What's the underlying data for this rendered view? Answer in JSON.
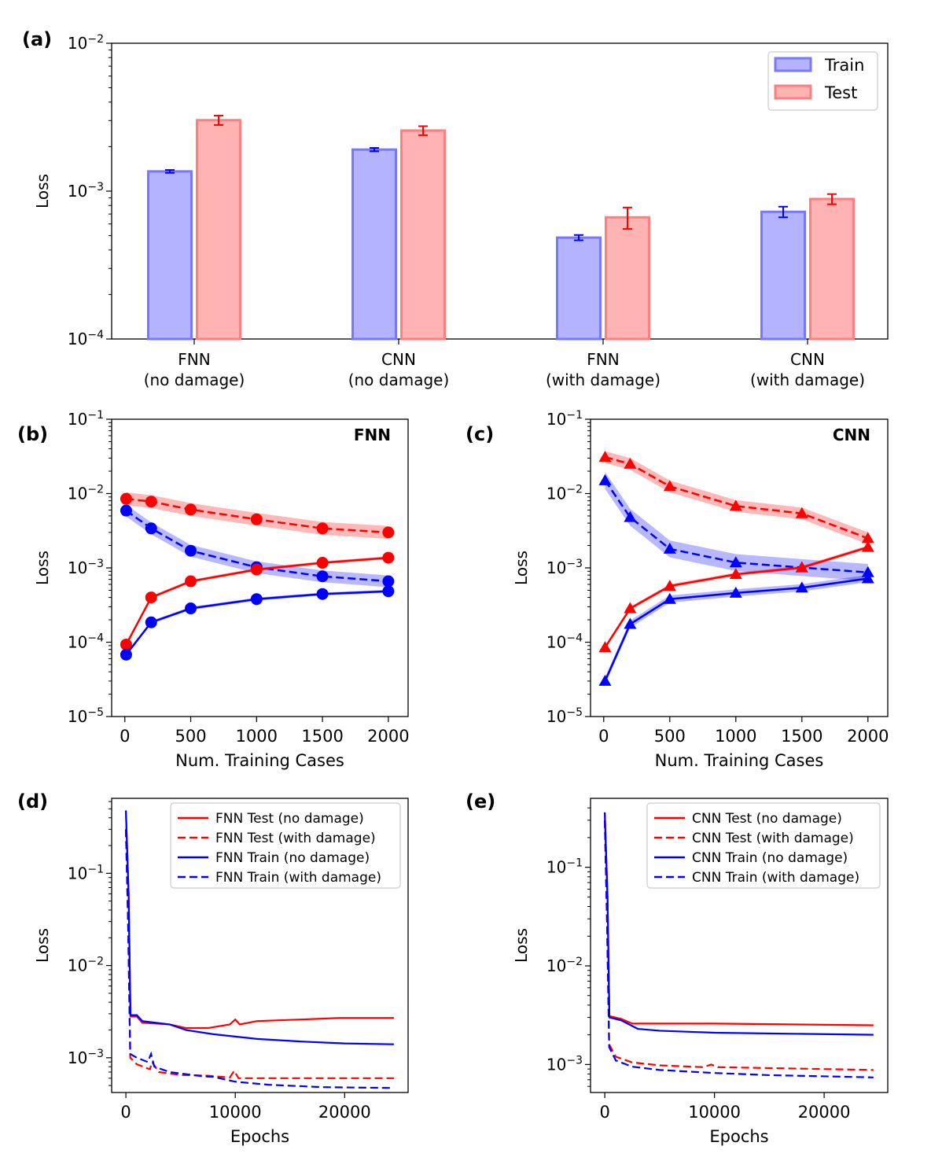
{
  "colors": {
    "train": "#0000ff",
    "test": "#ff0000",
    "train_fill": "#b3b3ff",
    "test_fill": "#ffb3b3",
    "train_edge": "#7777ff",
    "test_edge": "#ff7f7f"
  },
  "chart_data": [
    {
      "panel": "(a)",
      "type": "bar",
      "ylabel": "Loss",
      "yscale": "log",
      "ylim": [
        0.0001,
        0.01
      ],
      "categories": [
        "FNN\n(no damage)",
        "CNN\n(no damage)",
        "FNN\n(with damage)",
        "CNN\n(with damage)"
      ],
      "series": [
        {
          "name": "Train",
          "values": [
            0.00136,
            0.00191,
            0.000485,
            0.000725
          ],
          "err": [
            3e-05,
            5e-05,
            2e-05,
            6e-05
          ]
        },
        {
          "name": "Test",
          "values": [
            0.00302,
            0.00257,
            0.000665,
            0.000885
          ],
          "err": [
            0.00022,
            0.00018,
            0.00011,
            7e-05
          ]
        }
      ],
      "legend": {
        "position": "top-right",
        "entries": [
          "Train",
          "Test"
        ]
      },
      "yticks": [
        {
          "v": 0.0001,
          "b": "10",
          "e": "−4"
        },
        {
          "v": 0.001,
          "b": "10",
          "e": "−3"
        },
        {
          "v": 0.01,
          "b": "10",
          "e": "−2"
        }
      ]
    },
    {
      "panel": "(b)",
      "title": "FNN",
      "type": "line",
      "xlabel": "Num. Training Cases",
      "ylabel": "Loss",
      "yscale": "log",
      "xlim": [
        -100,
        2150
      ],
      "ylim": [
        1e-05,
        0.1
      ],
      "xticks": [
        "0",
        "500",
        "1000",
        "1500",
        "2000"
      ],
      "yticks": [
        {
          "v": 1e-05,
          "b": "10",
          "e": "−5"
        },
        {
          "v": 0.0001,
          "b": "10",
          "e": "−4"
        },
        {
          "v": 0.001,
          "b": "10",
          "e": "−3"
        },
        {
          "v": 0.01,
          "b": "10",
          "e": "−2"
        },
        {
          "v": 0.1,
          "b": "10",
          "e": "−1"
        }
      ],
      "x": [
        10,
        200,
        500,
        1000,
        1500,
        2000
      ],
      "series": [
        {
          "name": "Test (with damage)",
          "color": "red",
          "dash": true,
          "values": [
            0.0085,
            0.0078,
            0.0061,
            0.0045,
            0.0034,
            0.003
          ],
          "band": 0.22
        },
        {
          "name": "Train (with damage)",
          "color": "blue",
          "dash": true,
          "values": [
            0.0059,
            0.0034,
            0.0017,
            0.00102,
            0.00077,
            0.00066
          ],
          "band": 0.2
        },
        {
          "name": "Test (no damage)",
          "color": "red",
          "dash": false,
          "values": [
            9.3e-05,
            0.0004,
            0.00066,
            0.00095,
            0.00117,
            0.00137
          ],
          "band": 0.05
        },
        {
          "name": "Train (no damage)",
          "color": "blue",
          "dash": false,
          "values": [
            6.8e-05,
            0.000185,
            0.000285,
            0.00038,
            0.000445,
            0.000485
          ],
          "band": 0.05
        }
      ]
    },
    {
      "panel": "(c)",
      "title": "CNN",
      "type": "line",
      "xlabel": "Num. Training Cases",
      "ylabel": "Loss",
      "yscale": "log",
      "xlim": [
        -100,
        2150
      ],
      "ylim": [
        1e-05,
        0.1
      ],
      "xticks": [
        "0",
        "500",
        "1000",
        "1500",
        "2000"
      ],
      "yticks": [
        {
          "v": 1e-05,
          "b": "10",
          "e": "−5"
        },
        {
          "v": 0.0001,
          "b": "10",
          "e": "−4"
        },
        {
          "v": 0.001,
          "b": "10",
          "e": "−3"
        },
        {
          "v": 0.01,
          "b": "10",
          "e": "−2"
        },
        {
          "v": 0.1,
          "b": "10",
          "e": "−1"
        }
      ],
      "x": [
        10,
        200,
        500,
        1000,
        1500,
        2000
      ],
      "series": [
        {
          "name": "Test (with damage)",
          "color": "red",
          "dash": true,
          "values": [
            0.031,
            0.025,
            0.0125,
            0.0068,
            0.0054,
            0.0025
          ],
          "band": 0.2
        },
        {
          "name": "Train (with damage)",
          "color": "blue",
          "dash": true,
          "values": [
            0.015,
            0.0048,
            0.0018,
            0.00118,
            0.00101,
            0.00087
          ],
          "band": 0.3
        },
        {
          "name": "Test (no damage)",
          "color": "red",
          "dash": false,
          "values": [
            8.5e-05,
            0.000285,
            0.00057,
            0.00082,
            0.00101,
            0.0019
          ],
          "band": 0.06
        },
        {
          "name": "Train (no damage)",
          "color": "blue",
          "dash": false,
          "values": [
            3e-05,
            0.000175,
            0.00038,
            0.00046,
            0.00054,
            0.00072
          ],
          "band": 0.12
        }
      ]
    },
    {
      "panel": "(d)",
      "type": "line",
      "xlabel": "Epochs",
      "ylabel": "Loss",
      "yscale": "log",
      "xlim": [
        -1300,
        25800
      ],
      "ylim": [
        0.00042,
        0.65
      ],
      "xticks": [
        "0",
        "10000",
        "20000"
      ],
      "yticks": [
        {
          "v": 0.001,
          "b": "10",
          "e": "−3"
        },
        {
          "v": 0.01,
          "b": "10",
          "e": "−2"
        },
        {
          "v": 0.1,
          "b": "10",
          "e": "−1"
        }
      ],
      "legend": {
        "position": "top-right",
        "entries": [
          "FNN Test (no damage)",
          "FNN Test (with damage)",
          "FNN Train (no damage)",
          "FNN Train (with damage)"
        ]
      },
      "series": [
        {
          "name": "FNN Test (no damage)",
          "color": "red",
          "dash": false,
          "points": [
            [
              0,
              0.48
            ],
            [
              250,
              0.06
            ],
            [
              420,
              0.0028
            ],
            [
              1000,
              0.0028
            ],
            [
              1500,
              0.0024
            ],
            [
              4000,
              0.0023
            ],
            [
              5500,
              0.0021
            ],
            [
              7500,
              0.0021
            ],
            [
              9500,
              0.0023
            ],
            [
              10000,
              0.0026
            ],
            [
              10400,
              0.0023
            ],
            [
              12000,
              0.0025
            ],
            [
              16000,
              0.0026
            ],
            [
              19500,
              0.0027
            ],
            [
              20000,
              0.0027
            ],
            [
              24500,
              0.0027
            ]
          ]
        },
        {
          "name": "FNN Test (with damage)",
          "color": "red",
          "dash": true,
          "points": [
            [
              0,
              0.3
            ],
            [
              200,
              0.03
            ],
            [
              400,
              0.001
            ],
            [
              1000,
              0.00085
            ],
            [
              1600,
              0.0008
            ],
            [
              2200,
              0.00075
            ],
            [
              2400,
              0.0009
            ],
            [
              3000,
              0.0007
            ],
            [
              5000,
              0.00065
            ],
            [
              7500,
              0.00064
            ],
            [
              9500,
              0.00061
            ],
            [
              9900,
              0.00072
            ],
            [
              10300,
              0.0006
            ],
            [
              13000,
              0.0006
            ],
            [
              20000,
              0.0006
            ],
            [
              24500,
              0.0006
            ]
          ]
        },
        {
          "name": "FNN Train (no damage)",
          "color": "blue",
          "dash": false,
          "points": [
            [
              0,
              0.48
            ],
            [
              250,
              0.06
            ],
            [
              420,
              0.0029
            ],
            [
              1000,
              0.0029
            ],
            [
              1500,
              0.0025
            ],
            [
              4000,
              0.0023
            ],
            [
              5500,
              0.002
            ],
            [
              8000,
              0.0018
            ],
            [
              12000,
              0.0016
            ],
            [
              16000,
              0.0015
            ],
            [
              20000,
              0.00143
            ],
            [
              24500,
              0.0014
            ]
          ]
        },
        {
          "name": "FNN Train (with damage)",
          "color": "blue",
          "dash": true,
          "points": [
            [
              0,
              0.3
            ],
            [
              200,
              0.03
            ],
            [
              400,
              0.0011
            ],
            [
              1000,
              0.001
            ],
            [
              2000,
              0.0009
            ],
            [
              2300,
              0.0011
            ],
            [
              2600,
              0.0008
            ],
            [
              4000,
              0.0007
            ],
            [
              7000,
              0.00063
            ],
            [
              8000,
              0.00062
            ],
            [
              10000,
              0.00055
            ],
            [
              13000,
              0.00051
            ],
            [
              18000,
              0.00048
            ],
            [
              24500,
              0.00047
            ]
          ]
        }
      ]
    },
    {
      "panel": "(e)",
      "type": "line",
      "xlabel": "Epochs",
      "ylabel": "Loss",
      "yscale": "log",
      "xlim": [
        -1300,
        25800
      ],
      "ylim": [
        0.00052,
        0.5
      ],
      "xticks": [
        "0",
        "10000",
        "20000"
      ],
      "yticks": [
        {
          "v": 0.001,
          "b": "10",
          "e": "−3"
        },
        {
          "v": 0.01,
          "b": "10",
          "e": "−2"
        },
        {
          "v": 0.1,
          "b": "10",
          "e": "−1"
        }
      ],
      "legend": {
        "position": "top-right",
        "entries": [
          "CNN Test (no damage)",
          "CNN Test (with damage)",
          "CNN Train (no damage)",
          "CNN Train (with damage)"
        ]
      },
      "series": [
        {
          "name": "CNN Test (no damage)",
          "color": "red",
          "dash": false,
          "points": [
            [
              0,
              0.36
            ],
            [
              250,
              0.05
            ],
            [
              420,
              0.0031
            ],
            [
              1500,
              0.0029
            ],
            [
              2500,
              0.0026
            ],
            [
              5000,
              0.0026
            ],
            [
              10000,
              0.0026
            ],
            [
              24500,
              0.0025
            ]
          ]
        },
        {
          "name": "CNN Test (with damage)",
          "color": "red",
          "dash": true,
          "points": [
            [
              0,
              0.3
            ],
            [
              200,
              0.03
            ],
            [
              400,
              0.0016
            ],
            [
              1000,
              0.0012
            ],
            [
              2500,
              0.00105
            ],
            [
              5000,
              0.00098
            ],
            [
              9000,
              0.00094
            ],
            [
              9700,
              0.001
            ],
            [
              10300,
              0.00094
            ],
            [
              15000,
              0.00092
            ],
            [
              24500,
              0.00088
            ]
          ]
        },
        {
          "name": "CNN Train (no damage)",
          "color": "blue",
          "dash": false,
          "points": [
            [
              0,
              0.36
            ],
            [
              250,
              0.05
            ],
            [
              420,
              0.003
            ],
            [
              1500,
              0.0028
            ],
            [
              3000,
              0.0023
            ],
            [
              5000,
              0.0022
            ],
            [
              10000,
              0.0021
            ],
            [
              24500,
              0.002
            ]
          ]
        },
        {
          "name": "CNN Train (with damage)",
          "color": "blue",
          "dash": true,
          "points": [
            [
              0,
              0.3
            ],
            [
              200,
              0.03
            ],
            [
              400,
              0.0015
            ],
            [
              1000,
              0.0011
            ],
            [
              2500,
              0.00095
            ],
            [
              5000,
              0.00088
            ],
            [
              10000,
              0.00082
            ],
            [
              15000,
              0.00078
            ],
            [
              24500,
              0.00074
            ]
          ]
        }
      ]
    }
  ]
}
